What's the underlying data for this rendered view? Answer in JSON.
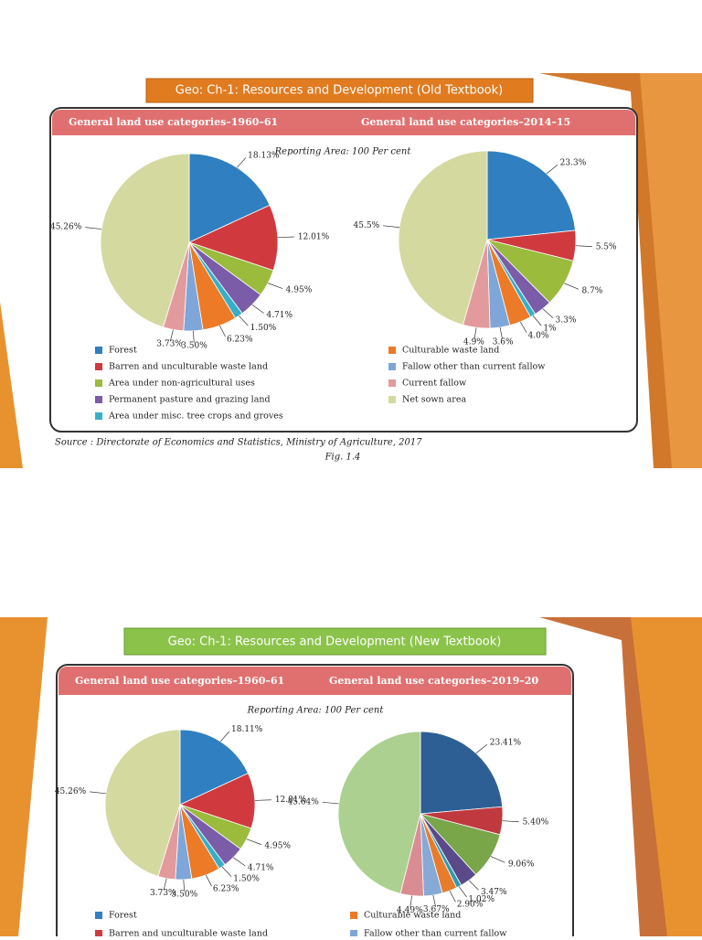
{
  "chart_data": [
    {
      "type": "pie",
      "title": "General land use categories–1960–61",
      "values": [
        18.13,
        12.01,
        4.95,
        4.71,
        1.5,
        6.23,
        3.5,
        3.73,
        45.26
      ],
      "value_labels": [
        "18.13%",
        "12.01%",
        "4.95%",
        "4.71%",
        "1.50%",
        "6.23%",
        "3.50%",
        "3.73%",
        "45.26%"
      ],
      "colors": [
        "#2f7fc1",
        "#d03a3f",
        "#9bbb3c",
        "#7a5ca8",
        "#35afc7",
        "#ec7a27",
        "#7ea6d8",
        "#e39a9c",
        "#d4d9a0"
      ]
    },
    {
      "type": "pie",
      "title": "General land use categories–2014–15",
      "values": [
        23.3,
        5.5,
        8.7,
        3.3,
        1,
        4.0,
        3.6,
        4.9,
        45.5
      ],
      "value_labels": [
        "23.3%",
        "5.5%",
        "8.7%",
        "3.3%",
        "1%",
        "4.0%",
        "3.6%",
        "4.9%",
        "45.5%"
      ],
      "colors": [
        "#2f7fc1",
        "#d03a3f",
        "#9bbb3c",
        "#7a5ca8",
        "#35afc7",
        "#ec7a27",
        "#7ea6d8",
        "#e39a9c",
        "#d4d9a0"
      ]
    },
    {
      "type": "pie",
      "title": "General land use categories–1960–61",
      "values": [
        18.11,
        12.01,
        4.95,
        4.71,
        1.5,
        6.23,
        3.5,
        3.73,
        45.26
      ],
      "value_labels": [
        "18.11%",
        "12.01%",
        "4.95%",
        "4.71%",
        "1.50%",
        "6.23%",
        "3.50%",
        "3.73%",
        "45.26%"
      ],
      "colors": [
        "#2f7fc1",
        "#d03a3f",
        "#9bbb3c",
        "#7a5ca8",
        "#35afc7",
        "#ec7a27",
        "#7ea6d8",
        "#e39a9c",
        "#d4d9a0"
      ]
    },
    {
      "type": "pie",
      "title": "General land use categories–2019–20",
      "values": [
        23.41,
        5.4,
        9.06,
        3.47,
        1.02,
        2.9,
        3.67,
        4.49,
        45.64
      ],
      "value_labels": [
        "23.41%",
        "5.40%",
        "9.06%",
        "3.47%",
        "1.02%",
        "2.90%",
        "3.67%",
        "4.49%",
        "45.64%"
      ],
      "colors": [
        "#2e5f94",
        "#c0393f",
        "#7aa64a",
        "#5b4a8a",
        "#2f9bb0",
        "#e77c2c",
        "#86a9d6",
        "#d98d92",
        "#acd08f"
      ]
    }
  ],
  "slides": [
    {
      "banner": "Geo: Ch-1: Resources and Development (Old Textbook)",
      "reporting_area": "Reporting Area: 100 Per cent",
      "legend": [
        "Forest",
        "Barren and unculturable waste land",
        "Area under non-agricultural uses",
        "Permanent pasture and grazing land",
        "Area under misc. tree crops and groves",
        "Culturable waste land",
        "Fallow other than current fallow",
        "Current fallow",
        "Net sown area"
      ],
      "source": "Source : Directorate of Economics and Statistics, Ministry of Agriculture, 2017",
      "figure": "Fig. 1.4"
    },
    {
      "banner": "Geo: Ch-1: Resources and Development (New Textbook)",
      "reporting_area": "Reporting Area: 100 Per cent",
      "legend": [
        "Forest",
        "Barren and unculturable waste land",
        "Culturable waste land",
        "Fallow other than current fallow"
      ]
    }
  ]
}
